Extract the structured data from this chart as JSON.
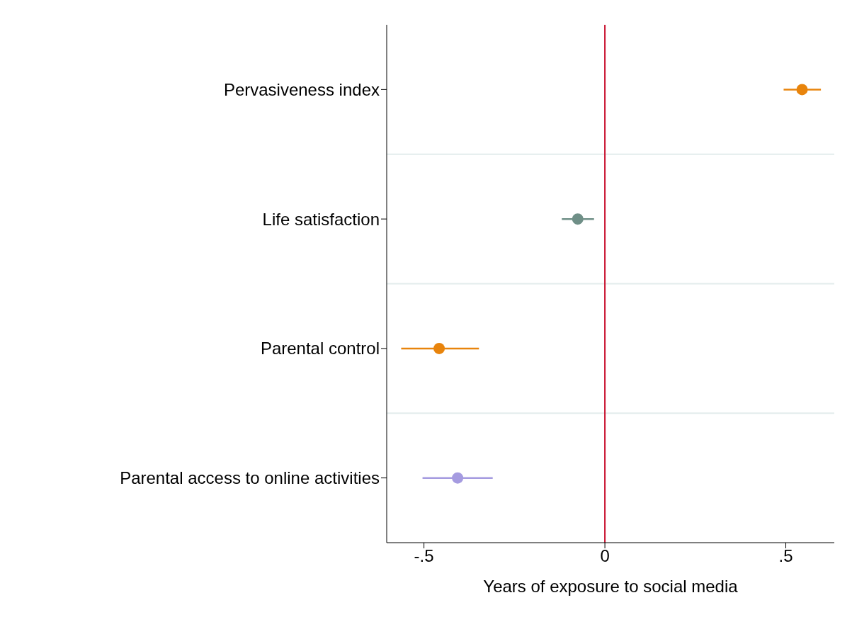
{
  "chart_data": {
    "type": "scatter",
    "orientation": "horizontal",
    "xlabel": "Years of exposure to social media",
    "categories": [
      "Pervasiveness index",
      "Life satisfaction",
      "Parental control",
      "Parental access to online activities"
    ],
    "values": [
      0.545,
      -0.075,
      -0.458,
      -0.407
    ],
    "errors": [
      [
        0.494,
        0.597
      ],
      [
        -0.119,
        -0.03
      ],
      [
        -0.563,
        -0.348
      ],
      [
        -0.504,
        -0.31
      ]
    ],
    "colors": [
      "#e8840c",
      "#6f8f87",
      "#e8840c",
      "#a59be0"
    ],
    "xlim": [
      -0.603,
      0.634
    ],
    "xticks": [
      {
        "value": -0.5,
        "label": "-.5"
      },
      0,
      {
        "value": 0.5,
        "label": ".5"
      }
    ],
    "ref_lines": [
      {
        "axis": "x",
        "value": 0,
        "label": null,
        "color": "#c8102e"
      }
    ],
    "grid": "y",
    "marker": "circle",
    "legend": false
  }
}
